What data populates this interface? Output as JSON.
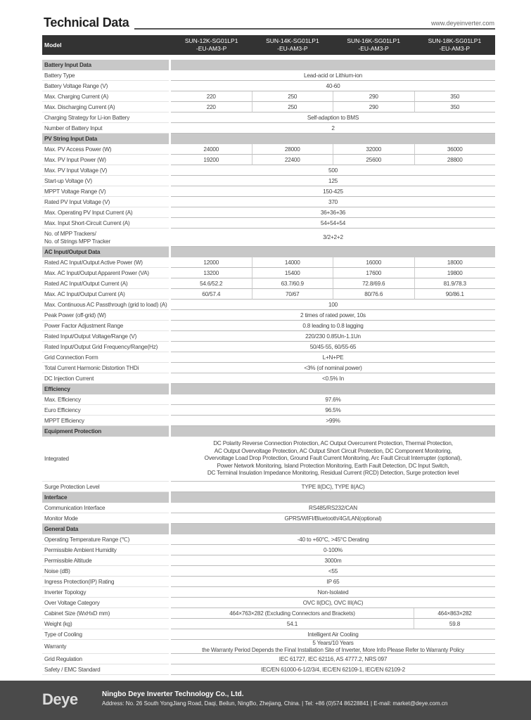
{
  "header": {
    "title": "Technical Data",
    "url": "www.deyeinverter.com"
  },
  "model": {
    "label": "Model",
    "models": [
      "SUN-12K-SG01LP1\n-EU-AM3-P",
      "SUN-14K-SG01LP1\n-EU-AM3-P",
      "SUN-16K-SG01LP1\n-EU-AM3-P",
      "SUN-18K-SG01LP1\n-EU-AM3-P"
    ]
  },
  "rows": [
    {
      "type": "section",
      "label": "Battery Input Data"
    },
    {
      "label": "Battery Type",
      "value": "Lead-acid or Lithium-ion"
    },
    {
      "label": "Battery Voltage Range (V)",
      "value": "40-60"
    },
    {
      "label": "Max. Charging Current (A)",
      "values": [
        "220",
        "250",
        "290",
        "350"
      ]
    },
    {
      "label": "Max. Discharging Current (A)",
      "values": [
        "220",
        "250",
        "290",
        "350"
      ]
    },
    {
      "label": "Charging Strategy for Li-ion Battery",
      "value": "Self-adaption to BMS"
    },
    {
      "label": "Number of Battery Input",
      "value": "2"
    },
    {
      "type": "section",
      "label": "PV String Input Data"
    },
    {
      "label": "Max. PV Access Power (W)",
      "values": [
        "24000",
        "28000",
        "32000",
        "36000"
      ]
    },
    {
      "label": "Max. PV Input Power (W)",
      "values": [
        "19200",
        "22400",
        "25600",
        "28800"
      ]
    },
    {
      "label": "Max. PV Input Voltage (V)",
      "value": "500"
    },
    {
      "label": "Start-up Voltage (V)",
      "value": "125"
    },
    {
      "label": "MPPT  Voltage Range (V)",
      "value": "150-425"
    },
    {
      "label": "Rated PV Input Voltage (V)",
      "value": "370"
    },
    {
      "label": "Max. Operating PV Input Current (A)",
      "value": "36+36+36"
    },
    {
      "label": "Max. Input Short-Circuit Current (A)",
      "value": "54+54+54"
    },
    {
      "label": "No. of MPP Trackers/\nNo. of Strings MPP Tracker",
      "value": "3/2+2+2",
      "size": "tall"
    },
    {
      "type": "section",
      "label": "AC Input/Output Data"
    },
    {
      "label": "Rated AC Input/Output Active Power (W)",
      "values": [
        "12000",
        "14000",
        "16000",
        "18000"
      ]
    },
    {
      "label": "Max. AC Input/Output Apparent Power (VA)",
      "values": [
        "13200",
        "15400",
        "17600",
        "19800"
      ]
    },
    {
      "label": "Rated AC Input/Output Current (A)",
      "values": [
        "54.6/52.2",
        "63.7/60.9",
        "72.8/69.6",
        "81.9/78.3"
      ]
    },
    {
      "label": "Max. AC Input/Output Current (A)",
      "values": [
        "60/57.4",
        "70/67",
        "80/76.6",
        "90/86.1"
      ]
    },
    {
      "label": "Max. Continuous AC Passthrough (grid to load) (A)",
      "value": "100"
    },
    {
      "label": "Peak Power (off-grid) (W)",
      "value": "2 times of rated power, 10s"
    },
    {
      "label": "Power Factor Adjustment Range",
      "value": "0.8 leading to 0.8 lagging"
    },
    {
      "label": "Rated Input/Output Voltage/Range (V)",
      "value": "220/230   0.85Un-1.1Un"
    },
    {
      "label": "Rated Input/Output Grid Frequency/Range(Hz)",
      "value": "50/45-55,  60/55-65"
    },
    {
      "label": "Grid Connection Form",
      "value": "L+N+PE"
    },
    {
      "label": "Total Current Harmonic Distortion THDi",
      "value": "<3% (of nominal power)"
    },
    {
      "label": "DC Injection Current",
      "value": "<0.5% In"
    },
    {
      "type": "section",
      "label": "Efficiency"
    },
    {
      "label": "Max. Efficiency",
      "value": "97.6%"
    },
    {
      "label": "Euro Efficiency",
      "value": "96.5%"
    },
    {
      "label": "MPPT Efficiency",
      "value": ">99%"
    },
    {
      "type": "section",
      "label": "Equipment Protection"
    },
    {
      "label": "Integrated",
      "value": "DC Polarity Reverse Connection Protection, AC Output Overcurrent Protection, Thermal Protection,\nAC Output Overvoltage Protection, AC Output Short Circuit Protection, DC Component Monitoring,\nOvervoltage Load Drop Protection, Ground Fault Current Monitoring, Arc Fault Circuit Interrupter (optional),\nPower Network Monitoring, Island Protection Monitoring, Earth Fault Detection, DC Input Switch,\nDC Terminal Insulation Impedance Monitoring, Residual Current (RCD) Detection, Surge protection level",
      "size": "int"
    },
    {
      "label": "Surge Protection Level",
      "value": "TYPE II(DC), TYPE II(AC)"
    },
    {
      "type": "section",
      "label": "Interface"
    },
    {
      "label": "Communication Interface",
      "value": "RS485/RS232/CAN"
    },
    {
      "label": "Monitor Mode",
      "value": "GPRS/WIFI/Bluetooth/4G/LAN(optional)"
    },
    {
      "type": "section",
      "label": "General Data"
    },
    {
      "label": "Operating Temperature Range (℃)",
      "value": "-40 to +60°C, >45°C Derating"
    },
    {
      "label": "Permissible Ambient Humidity",
      "value": "0-100%"
    },
    {
      "label": "Permissible Altitude",
      "value": "3000m"
    },
    {
      "label": "Noise (dB)",
      "value": "<55"
    },
    {
      "label": "Ingress Protection(IP) Rating",
      "value": "IP 65"
    },
    {
      "label": "Inverter Topology",
      "value": "Non-Isolated"
    },
    {
      "label": "Over Voltage Category",
      "value": "OVC II(DC), OVC III(AC)"
    },
    {
      "label": "Cabinet Size (WxHxD mm)",
      "value": "464×763×282 (Excluding Connectors and Brackets)",
      "last": "464×863×282"
    },
    {
      "label": "Weight (kg)",
      "value": "54.1",
      "last": "59.8"
    },
    {
      "label": "Type of Cooling",
      "value": "Intelligent Air Cooling"
    },
    {
      "label": "Warranty",
      "value": "5 Years/10 Years\nthe Warranty Period Depends the Final Installation Site of Inverter, More Info Please Refer to Warranty Policy",
      "size": "war"
    },
    {
      "label": "Grid Regulation",
      "value": "IEC 61727, IEC 62116, AS 4777.2, NRS 097"
    },
    {
      "label": "Safety / EMC Standard",
      "value": "IEC/EN 61000-6-1/2/3/4, IEC/EN 62109-1, IEC/EN 62109-2"
    }
  ],
  "footer": {
    "logo": "Deye",
    "company": "Ningbo Deye Inverter Technology Co., Ltd.",
    "address": "Address: No. 26 South YongJiang Road, Daqi, Beilun, NingBo, Zhejiang, China.  |  Tel: +86 (0)574 86228841  |  E-mail: market@deye.com.cn"
  }
}
